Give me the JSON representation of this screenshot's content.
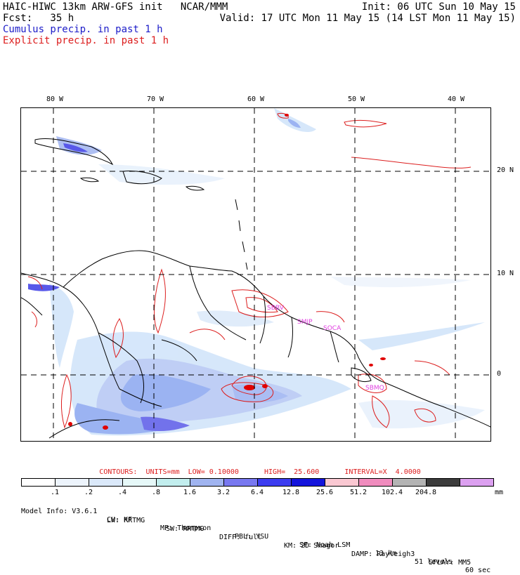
{
  "header": {
    "line1_left": "HAIC-HIWC 13km ARW-GFS init   NCAR/MMM",
    "line1_right": "Init: 06 UTC Sun 10 May 15",
    "line2_left": "Fcst:   35 h",
    "line2_right": "Valid: 17 UTC Mon 11 May 15 (14 LST Mon 11 May 15)",
    "cumulus_label": "Cumulus precip. in past 1 h",
    "explicit_label": "Explicit precip. in past 1 h"
  },
  "map": {
    "lon_labels": [
      "80 W",
      "70 W",
      "60 W",
      "50 W",
      "40 W"
    ],
    "lat_labels": [
      "20 N",
      "10 N",
      "0"
    ],
    "station_labels": [
      "SBBV",
      "SMJP",
      "SOCA",
      "SBMQ"
    ],
    "colors": {
      "coast": "#000000",
      "grid": "#000000",
      "cumulus_light": "#cfe3fa",
      "cumulus_mid": "#8aa6f0",
      "cumulus_dark": "#3c3ce6",
      "explicit_contour": "#dc1e1e",
      "station": "#e040e0"
    }
  },
  "contours_line": "CONTOURS:  UNITS=mm  LOW= 0.10000      HIGH=  25.600      INTERVAL=X  4.0000",
  "legend": {
    "ticks": [
      ".1",
      ".2",
      ".4",
      ".8",
      "1.6",
      "3.2",
      "6.4",
      "12.8",
      "25.6",
      "51.2",
      "102.4",
      "204.8"
    ],
    "units": "mm",
    "colors": [
      "#ffffff",
      "#edf4fc",
      "#dbe9fa",
      "#e6f8f8",
      "#c2eeee",
      "#a0b4f0",
      "#7878f0",
      "#3c3cf0",
      "#1414dc",
      "#fac8d2",
      "#f08cbe",
      "#b4b4b4",
      "#3c3c3c",
      "#dca0f0"
    ]
  },
  "model_info": {
    "line1": [
      "Model Info: V3.6.1",
      "CU: KF",
      "MP: Thompson",
      "PBL: YSU",
      "SF: Noah LSM",
      "13 km",
      "51 levels",
      "60 sec"
    ],
    "line2": [
      "LW: RRTMG",
      "SW: RRTMG",
      "DIFF: full",
      "KM: 2D Smagor",
      "DAMP: Rayleigh3",
      "SFLAY: MM5"
    ]
  }
}
